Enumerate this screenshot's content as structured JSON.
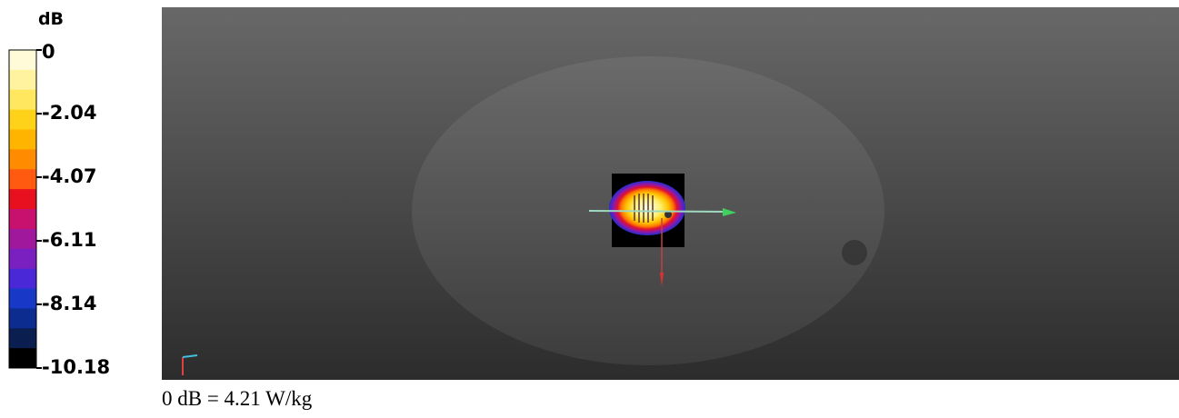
{
  "colorbar": {
    "unit": "dB",
    "ticks": [
      0,
      -2.04,
      -4.07,
      -6.11,
      -8.14,
      -10.18
    ],
    "colors": [
      "#fffbd8",
      "#fff3a0",
      "#ffe860",
      "#ffd21a",
      "#ffb400",
      "#ff8c00",
      "#ff5a10",
      "#e8101e",
      "#c8106e",
      "#a0189c",
      "#7a20c0",
      "#4a28d8",
      "#1838c8",
      "#0c2c90",
      "#0a1e50",
      "#000000"
    ]
  },
  "caption": "0 dB = 4.21 W/kg"
}
